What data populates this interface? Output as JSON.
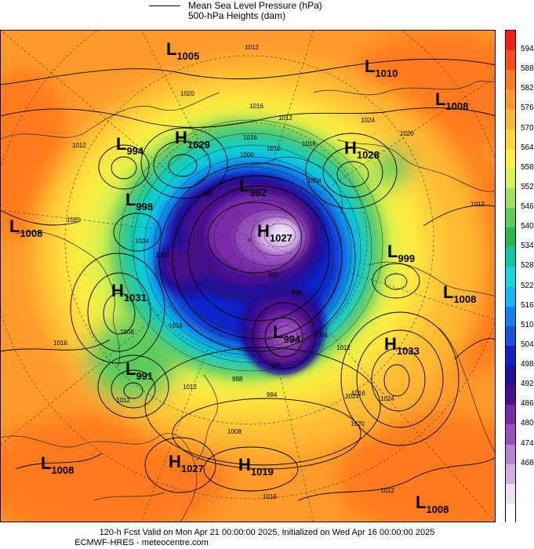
{
  "legend": {
    "mslp_label": "Mean Sea Level Pressure (hPa)",
    "heights_label": "500-hPa Heights (dam)"
  },
  "footer": {
    "valid_line": "120-h Fcst Valid on Mon Apr 21 00:00:00 2025, Initialized on Wed Apr 16 00:00:00 2025",
    "credit_line": "ECMWF-HRES - meteocentre.com"
  },
  "colorbar": {
    "labels": [
      "594",
      "588",
      "582",
      "576",
      "570",
      "564",
      "558",
      "552",
      "546",
      "540",
      "534",
      "528",
      "522",
      "516",
      "510",
      "504",
      "498",
      "492",
      "486",
      "480",
      "474",
      "468"
    ],
    "colors": [
      "#ff1a1a",
      "#ff4d1a",
      "#ff7a1f",
      "#ff9a2a",
      "#ffb830",
      "#ffd43a",
      "#fff040",
      "#d8f050",
      "#9fe060",
      "#5ccc5c",
      "#28b850",
      "#10c8a0",
      "#10d8e0",
      "#10b8f8",
      "#1080f0",
      "#1850e0",
      "#1020c8",
      "#2010a0",
      "#4a1090",
      "#7a2aa8",
      "#9a50c0",
      "#b880d8",
      "#d4aae8",
      "#ece0f4",
      "#ffffff"
    ]
  },
  "systems": [
    {
      "type": "L",
      "value": "1005"
    },
    {
      "type": "L",
      "value": "1010"
    },
    {
      "type": "L",
      "value": "1008"
    },
    {
      "type": "L",
      "value": "994"
    },
    {
      "type": "H",
      "value": "1029"
    },
    {
      "type": "H",
      "value": "1028"
    },
    {
      "type": "L",
      "value": "962"
    },
    {
      "type": "L",
      "value": "998"
    },
    {
      "type": "L",
      "value": "1008"
    },
    {
      "type": "H",
      "value": "1027"
    },
    {
      "type": "L",
      "value": "999"
    },
    {
      "type": "H",
      "value": "1031"
    },
    {
      "type": "L",
      "value": "1008"
    },
    {
      "type": "L",
      "value": "994"
    },
    {
      "type": "H",
      "value": "1033"
    },
    {
      "type": "L",
      "value": "991"
    },
    {
      "type": "L",
      "value": "1008"
    },
    {
      "type": "H",
      "value": "1027"
    },
    {
      "type": "H",
      "value": "1019"
    },
    {
      "type": "L",
      "value": "1008"
    }
  ],
  "isobar_labels": [
    "1012",
    "1020",
    "1016",
    "1012",
    "1024",
    "1020",
    "1012",
    "1016",
    "1000",
    "1004",
    "1012",
    "1024",
    "1020",
    "1016",
    "1008",
    "1012",
    "1024",
    "1016",
    "1016",
    "1008",
    "1004",
    "1012",
    "1016",
    "1024",
    "1020",
    "1008",
    "1012",
    "1016",
    "1012",
    "1012",
    "988",
    "984",
    "996",
    "992",
    "960",
    "980"
  ]
}
